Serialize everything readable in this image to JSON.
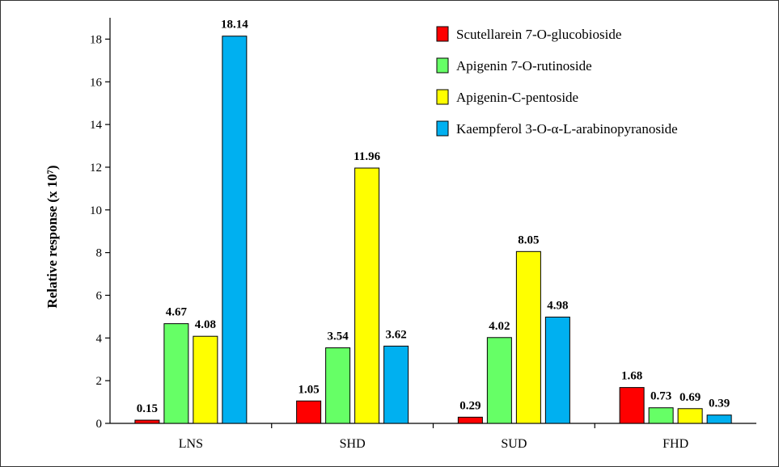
{
  "chart_data": {
    "type": "bar",
    "title": "",
    "xlabel": "",
    "ylabel": "Relative response (x 10⁷)",
    "ylim": [
      0,
      19
    ],
    "yticks": [
      0,
      2,
      4,
      6,
      8,
      10,
      12,
      14,
      16,
      18
    ],
    "categories": [
      "LNS",
      "SHD",
      "SUD",
      "FHD"
    ],
    "series": [
      {
        "name": "Scutellarein 7-O-glucobioside",
        "color": "#ff0000",
        "values": [
          0.15,
          1.05,
          0.29,
          1.68
        ]
      },
      {
        "name": "Apigenin 7-O-rutinoside",
        "color": "#66ff66",
        "values": [
          4.67,
          3.54,
          4.02,
          0.73
        ]
      },
      {
        "name": "Apigenin-C-pentoside",
        "color": "#ffff00",
        "values": [
          4.08,
          11.96,
          8.05,
          0.69
        ]
      },
      {
        "name": "Kaempferol 3-O-α-L-arabinopyranoside",
        "color": "#00b0f0",
        "values": [
          18.14,
          3.62,
          4.98,
          0.39
        ]
      }
    ],
    "data_labels": [
      [
        "0.15",
        "1.05",
        "0.29",
        "1.68"
      ],
      [
        "4.67",
        "3.54",
        "4.02",
        "0.73"
      ],
      [
        "4.08",
        "11.96",
        "8.05",
        "0.69"
      ],
      [
        "18.14",
        "3.62",
        "4.98",
        "0.39"
      ]
    ],
    "legend_position": "top-right",
    "grid": false
  }
}
